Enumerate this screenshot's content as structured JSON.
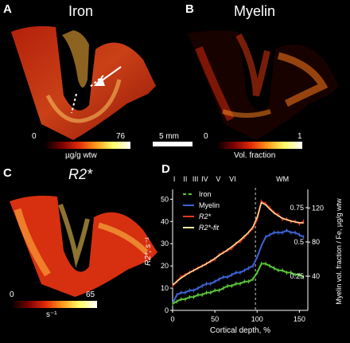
{
  "panels": {
    "A": {
      "label": "A",
      "title": "Iron",
      "cbar_min": "0",
      "cbar_max": "76",
      "cbar_unit": "µg/g wtw"
    },
    "B": {
      "label": "B",
      "title": "Myelin",
      "cbar_min": "0",
      "cbar_max": "1",
      "cbar_unit": "Vol. fraction"
    },
    "C": {
      "label": "C",
      "title": "R2*",
      "cbar_min": "0",
      "cbar_max": "65",
      "cbar_unit": "s⁻¹"
    },
    "D": {
      "label": "D"
    }
  },
  "scale_bar": {
    "label": "5 mm"
  },
  "colors": {
    "iron": "#5cc83a",
    "myelin": "#3e64d6",
    "r2star": "#e03a1c",
    "r2fit": "#ffe9a0"
  },
  "chart_data": {
    "type": "line",
    "xlabel": "Cortical depth, %",
    "ylabel_left": "R2*, s⁻¹",
    "ylabel_right": "Myelin vol. fraction / Fe, µg/g wtw",
    "xlim": [
      0,
      160
    ],
    "ylim_left": [
      0,
      53
    ],
    "xticks": [
      "0",
      "50",
      "100",
      "150"
    ],
    "yticks_left": [
      "0",
      "10",
      "20",
      "30",
      "40",
      "50"
    ],
    "yticks_right_inner": [
      "0.25",
      "0.5",
      "0.75"
    ],
    "yticks_right_outer": [
      "40",
      "80",
      "120"
    ],
    "layers": [
      "I",
      "II",
      "III",
      "IV",
      "V",
      "VI",
      "WM"
    ],
    "layer_positions": [
      2,
      15,
      27,
      38,
      54,
      71,
      130
    ],
    "boundary_x": 98,
    "legend": [
      "Iron",
      "Myelin",
      "R2*",
      "R2*-fit"
    ],
    "x": [
      0,
      5,
      10,
      15,
      20,
      25,
      30,
      35,
      40,
      45,
      50,
      55,
      60,
      65,
      70,
      75,
      80,
      85,
      90,
      95,
      100,
      105,
      110,
      115,
      120,
      125,
      130,
      135,
      140,
      145,
      150,
      155
    ],
    "series": [
      {
        "name": "R2*",
        "values": [
          11,
          13,
          15,
          16,
          17,
          18,
          19,
          20,
          21,
          22,
          23,
          25,
          26,
          27,
          28,
          30,
          31,
          33,
          35,
          37,
          41,
          49,
          48,
          46,
          44,
          43,
          41,
          41,
          40,
          40,
          39,
          40
        ]
      },
      {
        "name": "R2*-fit",
        "values": [
          11.5,
          13,
          14.5,
          15.8,
          17,
          18,
          19,
          20,
          21,
          22.2,
          23.4,
          24.7,
          26,
          27.3,
          28.7,
          30.2,
          31.7,
          33.4,
          35.2,
          37.5,
          42,
          48.5,
          47.5,
          45.5,
          43.8,
          42.5,
          41.5,
          40.8,
          40.2,
          39.8,
          39.5,
          39.3
        ]
      },
      {
        "name": "Myelin",
        "values": [
          3,
          7,
          8,
          8,
          9,
          9,
          10,
          11,
          12,
          12,
          13,
          14,
          15,
          15,
          16,
          17,
          17,
          18,
          19,
          20,
          24,
          29,
          33,
          34,
          35,
          35,
          35,
          36,
          35,
          35,
          34,
          33
        ]
      },
      {
        "name": "Iron",
        "values": [
          3,
          4,
          5,
          5,
          6,
          6,
          7,
          7,
          8,
          8,
          9,
          9,
          10,
          11,
          11,
          12,
          12,
          13,
          13,
          14,
          17,
          21,
          21,
          20,
          19,
          18,
          18,
          17,
          17,
          16,
          16,
          15
        ]
      }
    ]
  }
}
